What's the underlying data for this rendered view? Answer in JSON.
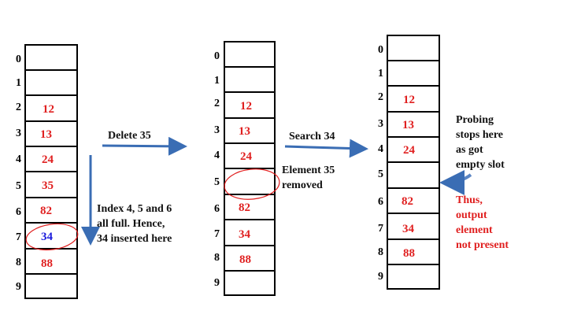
{
  "indices": [
    "0",
    "1",
    "2",
    "3",
    "4",
    "5",
    "6",
    "7",
    "8",
    "9"
  ],
  "table1": {
    "values": {
      "2": "12",
      "3": "13",
      "4": "24",
      "5": "35",
      "6": "82",
      "7": "34",
      "8": "88"
    }
  },
  "table2": {
    "values": {
      "2": "12",
      "3": "13",
      "4": "24",
      "6": "82",
      "7": "34",
      "8": "88"
    }
  },
  "table3": {
    "values": {
      "2": "12",
      "3": "13",
      "4": "24",
      "6": "82",
      "7": "34",
      "8": "88"
    }
  },
  "arrows": {
    "delete_label": "Delete 35",
    "search_label": "Search 34"
  },
  "notes": {
    "insert_note": [
      "Index 4, 5 and 6",
      "all full. Hence,",
      "34 inserted here"
    ],
    "removed_note": [
      "Element 35",
      "removed"
    ],
    "probe_note": [
      "Probing",
      "stops here",
      "as got",
      "empty slot"
    ],
    "result_note": [
      "Thus,",
      "output",
      "element",
      "not present"
    ]
  },
  "colors": {
    "value": "#e02020",
    "inserted": "#1a1adc",
    "arrow": "#3a6db4",
    "note_red": "#e02020"
  }
}
